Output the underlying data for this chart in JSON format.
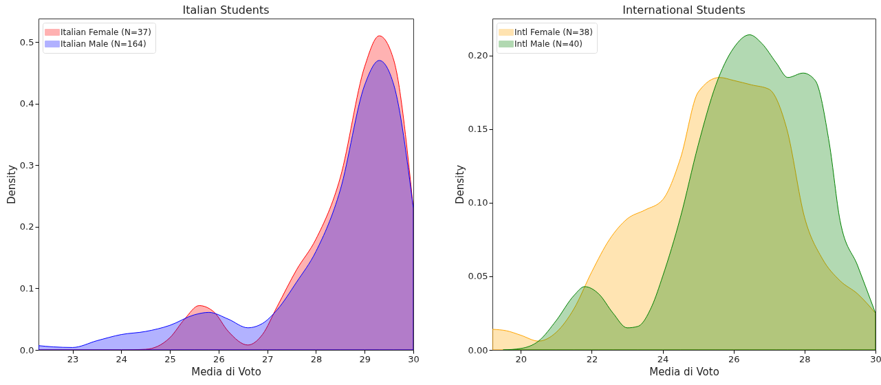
{
  "chart_data": [
    {
      "type": "area",
      "title": "Italian Students",
      "xlabel": "Media di Voto",
      "ylabel": "Density",
      "xlim": [
        22.3,
        30
      ],
      "ylim": [
        0,
        0.538
      ],
      "xticks": [
        23,
        24,
        25,
        26,
        27,
        28,
        29,
        30
      ],
      "yticks": [
        {
          "value": 0,
          "label": "0.0"
        },
        0.1,
        0.2,
        0.3,
        0.4,
        0.5
      ],
      "legend": "top left",
      "grid": false,
      "series": [
        {
          "name": "Italian Female (N=37)",
          "color": "#ff0000",
          "x": [
            22.3,
            24.0,
            24.5,
            25.0,
            25.3,
            25.6,
            25.9,
            26.2,
            26.6,
            26.9,
            27.2,
            27.6,
            28.0,
            28.5,
            29.0,
            29.3,
            29.6,
            30.0
          ],
          "values": [
            0,
            0,
            0.001,
            0.02,
            0.05,
            0.072,
            0.062,
            0.03,
            0.008,
            0.025,
            0.07,
            0.13,
            0.18,
            0.28,
            0.46,
            0.51,
            0.47,
            0.23
          ]
        },
        {
          "name": "Italian Male (N=164)",
          "color": "#0000ff",
          "x": [
            22.3,
            22.6,
            23.0,
            23.5,
            24.0,
            24.5,
            25.0,
            25.5,
            25.8,
            26.2,
            26.6,
            26.9,
            27.2,
            27.6,
            28.0,
            28.5,
            29.0,
            29.3,
            29.6,
            30.0
          ],
          "values": [
            0.007,
            0.005,
            0.004,
            0.015,
            0.025,
            0.03,
            0.04,
            0.057,
            0.061,
            0.05,
            0.036,
            0.043,
            0.065,
            0.11,
            0.16,
            0.26,
            0.43,
            0.47,
            0.43,
            0.23
          ]
        }
      ]
    },
    {
      "type": "area",
      "title": "International Students",
      "xlabel": "Media di Voto",
      "ylabel": "Density",
      "xlim": [
        19.2,
        30
      ],
      "ylim": [
        0,
        0.225
      ],
      "xticks": [
        20,
        22,
        24,
        26,
        28,
        30
      ],
      "yticks": [
        {
          "value": 0,
          "label": "0.00"
        },
        {
          "value": 0.05,
          "label": "0.05"
        },
        {
          "value": 0.1,
          "label": "0.10"
        },
        {
          "value": 0.15,
          "label": "0.15"
        },
        {
          "value": 0.2,
          "label": "0.20"
        }
      ],
      "legend": "top left",
      "grid": false,
      "series": [
        {
          "name": "Intl Female (N=38)",
          "color": "#ffa500",
          "x": [
            19.2,
            19.6,
            20.0,
            20.5,
            21.0,
            21.5,
            22.0,
            22.5,
            23.0,
            23.5,
            24.0,
            24.5,
            25.0,
            25.6,
            26.0,
            26.5,
            27.0,
            27.5,
            28.0,
            28.5,
            29.0,
            29.5,
            30.0
          ],
          "values": [
            0.014,
            0.013,
            0.01,
            0.006,
            0.012,
            0.028,
            0.053,
            0.075,
            0.089,
            0.095,
            0.102,
            0.13,
            0.175,
            0.185,
            0.183,
            0.18,
            0.177,
            0.15,
            0.09,
            0.062,
            0.047,
            0.038,
            0.025
          ]
        },
        {
          "name": "Intl Male (N=40)",
          "color": "#008000",
          "x": [
            19.5,
            20.0,
            20.5,
            21.0,
            21.5,
            21.8,
            22.2,
            22.6,
            23.0,
            23.3,
            23.7,
            24.0,
            24.5,
            25.0,
            25.5,
            26.0,
            26.45,
            26.8,
            27.2,
            27.53,
            27.96,
            28.3,
            28.7,
            29.0,
            29.5,
            30.0
          ],
          "values": [
            0,
            0.001,
            0.006,
            0.02,
            0.037,
            0.043,
            0.038,
            0.025,
            0.015,
            0.016,
            0.03,
            0.05,
            0.09,
            0.139,
            0.18,
            0.205,
            0.214,
            0.208,
            0.195,
            0.185,
            0.188,
            0.183,
            0.14,
            0.088,
            0.057,
            0.025
          ]
        }
      ]
    }
  ]
}
